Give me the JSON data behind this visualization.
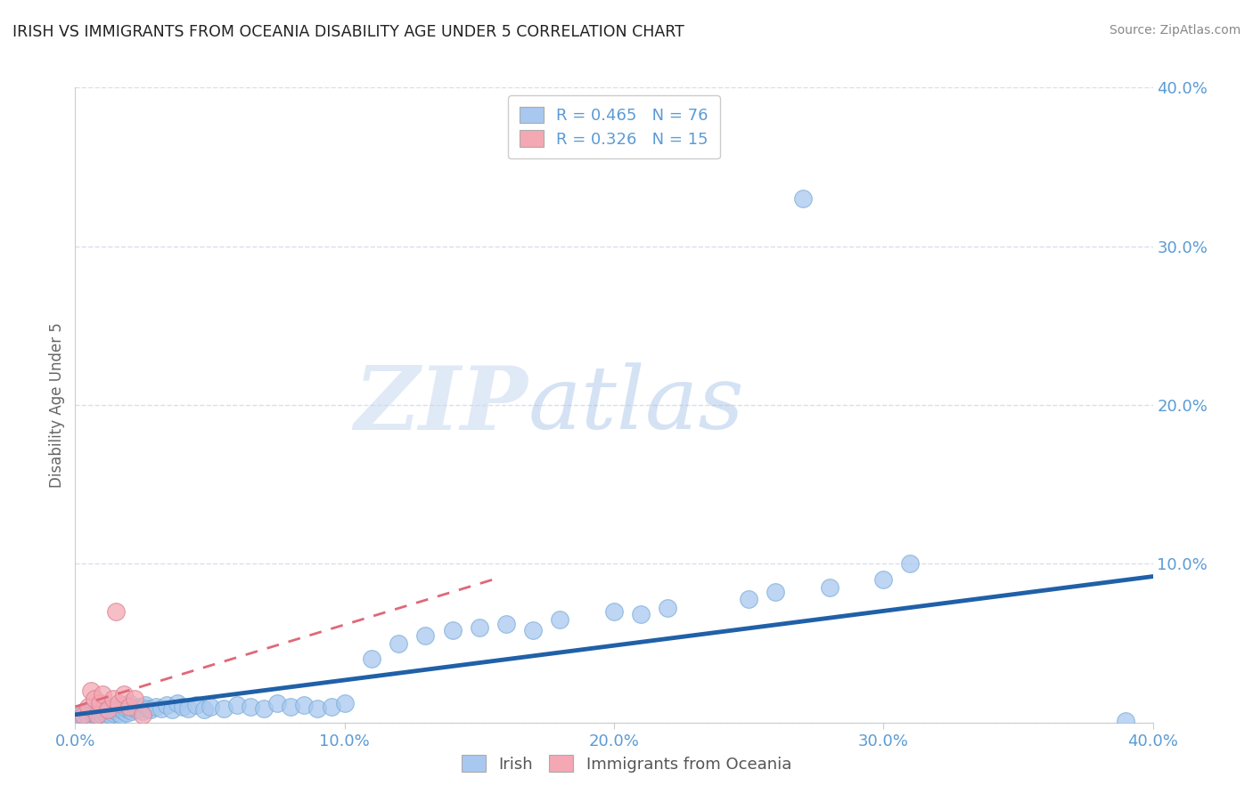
{
  "title": "IRISH VS IMMIGRANTS FROM OCEANIA DISABILITY AGE UNDER 5 CORRELATION CHART",
  "source": "Source: ZipAtlas.com",
  "xlabel": "",
  "ylabel": "Disability Age Under 5",
  "xlim": [
    0.0,
    0.4
  ],
  "ylim": [
    0.0,
    0.4
  ],
  "xticks": [
    0.0,
    0.1,
    0.2,
    0.3,
    0.4
  ],
  "yticks": [
    0.0,
    0.1,
    0.2,
    0.3,
    0.4
  ],
  "xtick_labels": [
    "0.0%",
    "",
    "",
    "",
    ""
  ],
  "xtick_labels_bottom": [
    "0.0%",
    "10.0%",
    "20.0%",
    "30.0%",
    "40.0%"
  ],
  "ytick_labels": [
    "",
    "10.0%",
    "20.0%",
    "30.0%",
    "40.0%"
  ],
  "blue_color": "#A8C8F0",
  "blue_edge_color": "#7BADD6",
  "pink_color": "#F4A8B4",
  "pink_edge_color": "#D98090",
  "blue_line_color": "#2060A8",
  "pink_line_color": "#E06878",
  "legend_r_blue": "R = 0.465",
  "legend_n_blue": "N = 76",
  "legend_r_pink": "R = 0.326",
  "legend_n_pink": "N = 15",
  "watermark_zip": "ZIP",
  "watermark_atlas": "atlas",
  "title_color": "#222222",
  "source_color": "#888888",
  "tick_label_color": "#5B9BD5",
  "ylabel_color": "#666666",
  "background_color": "#FFFFFF",
  "grid_color": "#D0D8E8",
  "blue_scatter_x": [
    0.002,
    0.003,
    0.004,
    0.005,
    0.006,
    0.007,
    0.008,
    0.009,
    0.01,
    0.01,
    0.011,
    0.011,
    0.012,
    0.012,
    0.013,
    0.013,
    0.014,
    0.014,
    0.015,
    0.015,
    0.016,
    0.016,
    0.017,
    0.017,
    0.018,
    0.018,
    0.019,
    0.019,
    0.02,
    0.02,
    0.021,
    0.022,
    0.023,
    0.024,
    0.025,
    0.026,
    0.027,
    0.028,
    0.03,
    0.032,
    0.034,
    0.036,
    0.038,
    0.04,
    0.042,
    0.045,
    0.048,
    0.05,
    0.055,
    0.06,
    0.065,
    0.07,
    0.075,
    0.08,
    0.085,
    0.09,
    0.095,
    0.1,
    0.11,
    0.12,
    0.13,
    0.14,
    0.15,
    0.16,
    0.17,
    0.18,
    0.2,
    0.21,
    0.22,
    0.25,
    0.26,
    0.27,
    0.28,
    0.3,
    0.31,
    0.39
  ],
  "blue_scatter_y": [
    0.005,
    0.003,
    0.006,
    0.004,
    0.007,
    0.005,
    0.004,
    0.006,
    0.005,
    0.008,
    0.006,
    0.01,
    0.007,
    0.004,
    0.008,
    0.005,
    0.009,
    0.006,
    0.007,
    0.01,
    0.006,
    0.009,
    0.005,
    0.008,
    0.007,
    0.011,
    0.006,
    0.009,
    0.008,
    0.012,
    0.007,
    0.009,
    0.008,
    0.01,
    0.007,
    0.011,
    0.009,
    0.008,
    0.01,
    0.009,
    0.011,
    0.008,
    0.012,
    0.01,
    0.009,
    0.011,
    0.008,
    0.01,
    0.009,
    0.011,
    0.01,
    0.009,
    0.012,
    0.01,
    0.011,
    0.009,
    0.01,
    0.012,
    0.04,
    0.05,
    0.055,
    0.058,
    0.06,
    0.062,
    0.058,
    0.065,
    0.07,
    0.068,
    0.072,
    0.078,
    0.082,
    0.33,
    0.085,
    0.09,
    0.1,
    0.001
  ],
  "pink_scatter_x": [
    0.003,
    0.005,
    0.006,
    0.007,
    0.008,
    0.009,
    0.01,
    0.012,
    0.014,
    0.015,
    0.016,
    0.018,
    0.02,
    0.022,
    0.025
  ],
  "pink_scatter_y": [
    0.005,
    0.01,
    0.02,
    0.015,
    0.005,
    0.012,
    0.018,
    0.008,
    0.015,
    0.07,
    0.012,
    0.018,
    0.01,
    0.015,
    0.005
  ],
  "blue_trend_x0": 0.0,
  "blue_trend_x1": 0.4,
  "blue_trend_y0": 0.005,
  "blue_trend_y1": 0.092,
  "pink_trend_x0": 0.0,
  "pink_trend_x1": 0.155,
  "pink_trend_y0": 0.01,
  "pink_trend_y1": 0.09
}
